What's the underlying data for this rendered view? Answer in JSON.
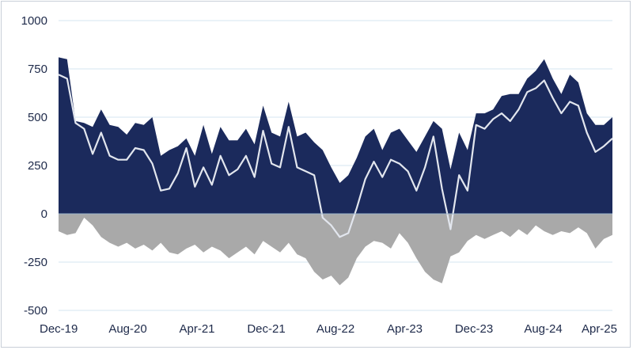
{
  "chart_data": {
    "type": "area",
    "title": "",
    "xlabel": "",
    "ylabel": "",
    "ylim": [
      -500,
      1000
    ],
    "y_ticks": [
      "1000",
      "750",
      "500",
      "250",
      "0",
      "-250",
      "-500"
    ],
    "y_tick_values": [
      1000,
      750,
      500,
      250,
      0,
      -250,
      -500
    ],
    "x_ticks": [
      "Dec-19",
      "Aug-20",
      "Apr-21",
      "Dec-21",
      "Aug-22",
      "Apr-23",
      "Dec-23",
      "Aug-24",
      "Apr-25"
    ],
    "grid": true,
    "legend": "none",
    "series": [
      {
        "kind": "area",
        "color": "#1b2a5c",
        "x": [
          "Dec-19",
          "Jan-20",
          "Feb-20",
          "Mar-20",
          "Apr-20",
          "May-20",
          "Jun-20",
          "Jul-20",
          "Aug-20",
          "Sep-20",
          "Oct-20",
          "Nov-20",
          "Dec-20",
          "Jan-21",
          "Feb-21",
          "Mar-21",
          "Apr-21",
          "May-21",
          "Jun-21",
          "Jul-21",
          "Aug-21",
          "Sep-21",
          "Oct-21",
          "Nov-21",
          "Dec-21",
          "Jan-22",
          "Feb-22",
          "Mar-22",
          "Apr-22",
          "May-22",
          "Jun-22",
          "Jul-22",
          "Aug-22",
          "Sep-22",
          "Oct-22",
          "Nov-22",
          "Dec-22",
          "Jan-23",
          "Feb-23",
          "Mar-23",
          "Apr-23",
          "May-23",
          "Jun-23",
          "Jul-23",
          "Aug-23",
          "Sep-23",
          "Oct-23",
          "Nov-23",
          "Dec-23",
          "Jan-24",
          "Feb-24",
          "Mar-24",
          "Apr-24",
          "May-24",
          "Jun-24",
          "Jul-24",
          "Aug-24",
          "Sep-24",
          "Oct-24",
          "Nov-24",
          "Dec-24",
          "Jan-25",
          "Feb-25",
          "Mar-25",
          "Apr-25",
          "May-25"
        ],
        "values": [
          810,
          800,
          480,
          470,
          450,
          540,
          460,
          450,
          410,
          470,
          460,
          500,
          300,
          330,
          350,
          390,
          300,
          460,
          310,
          450,
          380,
          380,
          440,
          360,
          560,
          420,
          400,
          580,
          400,
          420,
          370,
          330,
          240,
          160,
          200,
          290,
          400,
          440,
          330,
          420,
          440,
          380,
          320,
          400,
          480,
          440,
          230,
          420,
          330,
          520,
          520,
          540,
          610,
          620,
          620,
          700,
          740,
          800,
          700,
          620,
          720,
          680,
          520,
          460,
          460,
          500
        ]
      },
      {
        "kind": "line",
        "color": "#e2e6ee",
        "x": [
          "Dec-19",
          "Jan-20",
          "Feb-20",
          "Mar-20",
          "Apr-20",
          "May-20",
          "Jun-20",
          "Jul-20",
          "Aug-20",
          "Sep-20",
          "Oct-20",
          "Nov-20",
          "Dec-20",
          "Jan-21",
          "Feb-21",
          "Mar-21",
          "Apr-21",
          "May-21",
          "Jun-21",
          "Jul-21",
          "Aug-21",
          "Sep-21",
          "Oct-21",
          "Nov-21",
          "Dec-21",
          "Jan-22",
          "Feb-22",
          "Mar-22",
          "Apr-22",
          "May-22",
          "Jun-22",
          "Jul-22",
          "Aug-22",
          "Sep-22",
          "Oct-22",
          "Nov-22",
          "Dec-22",
          "Jan-23",
          "Feb-23",
          "Mar-23",
          "Apr-23",
          "May-23",
          "Jun-23",
          "Jul-23",
          "Aug-23",
          "Sep-23",
          "Oct-23",
          "Nov-23",
          "Dec-23",
          "Jan-24",
          "Feb-24",
          "Mar-24",
          "Apr-24",
          "May-24",
          "Jun-24",
          "Jul-24",
          "Aug-24",
          "Sep-24",
          "Oct-24",
          "Nov-24",
          "Dec-24",
          "Jan-25",
          "Feb-25",
          "Mar-25",
          "Apr-25",
          "May-25"
        ],
        "values": [
          720,
          700,
          470,
          440,
          310,
          420,
          300,
          280,
          280,
          340,
          330,
          260,
          120,
          130,
          210,
          340,
          140,
          240,
          150,
          300,
          200,
          230,
          300,
          190,
          430,
          260,
          240,
          450,
          240,
          220,
          200,
          -20,
          -60,
          -120,
          -100,
          30,
          180,
          270,
          190,
          280,
          260,
          220,
          120,
          240,
          400,
          130,
          -80,
          200,
          120,
          460,
          440,
          490,
          520,
          480,
          540,
          630,
          650,
          690,
          600,
          520,
          580,
          560,
          420,
          320,
          350,
          390
        ]
      },
      {
        "kind": "area",
        "color": "#a9a9a9",
        "x": [
          "Dec-19",
          "Jan-20",
          "Feb-20",
          "Mar-20",
          "Apr-20",
          "May-20",
          "Jun-20",
          "Jul-20",
          "Aug-20",
          "Sep-20",
          "Oct-20",
          "Nov-20",
          "Dec-20",
          "Jan-21",
          "Feb-21",
          "Mar-21",
          "Apr-21",
          "May-21",
          "Jun-21",
          "Jul-21",
          "Aug-21",
          "Sep-21",
          "Oct-21",
          "Nov-21",
          "Dec-21",
          "Jan-22",
          "Feb-22",
          "Mar-22",
          "Apr-22",
          "May-22",
          "Jun-22",
          "Jul-22",
          "Aug-22",
          "Sep-22",
          "Oct-22",
          "Nov-22",
          "Dec-22",
          "Jan-23",
          "Feb-23",
          "Mar-23",
          "Apr-23",
          "May-23",
          "Jun-23",
          "Jul-23",
          "Aug-23",
          "Sep-23",
          "Oct-23",
          "Nov-23",
          "Dec-23",
          "Jan-24",
          "Feb-24",
          "Mar-24",
          "Apr-24",
          "May-24",
          "Jun-24",
          "Jul-24",
          "Aug-24",
          "Sep-24",
          "Oct-24",
          "Nov-24",
          "Dec-24",
          "Jan-25",
          "Feb-25",
          "Mar-25",
          "Apr-25",
          "May-25"
        ],
        "values": [
          -90,
          -110,
          -100,
          -20,
          -60,
          -120,
          -150,
          -170,
          -150,
          -180,
          -160,
          -190,
          -150,
          -200,
          -210,
          -180,
          -160,
          -200,
          -170,
          -190,
          -230,
          -200,
          -170,
          -210,
          -140,
          -170,
          -200,
          -150,
          -210,
          -230,
          -300,
          -340,
          -320,
          -370,
          -330,
          -230,
          -170,
          -140,
          -150,
          -180,
          -100,
          -150,
          -230,
          -300,
          -340,
          -360,
          -220,
          -200,
          -140,
          -110,
          -130,
          -110,
          -90,
          -120,
          -80,
          -110,
          -60,
          -90,
          -110,
          -90,
          -100,
          -70,
          -100,
          -180,
          -130,
          -110
        ]
      }
    ]
  }
}
